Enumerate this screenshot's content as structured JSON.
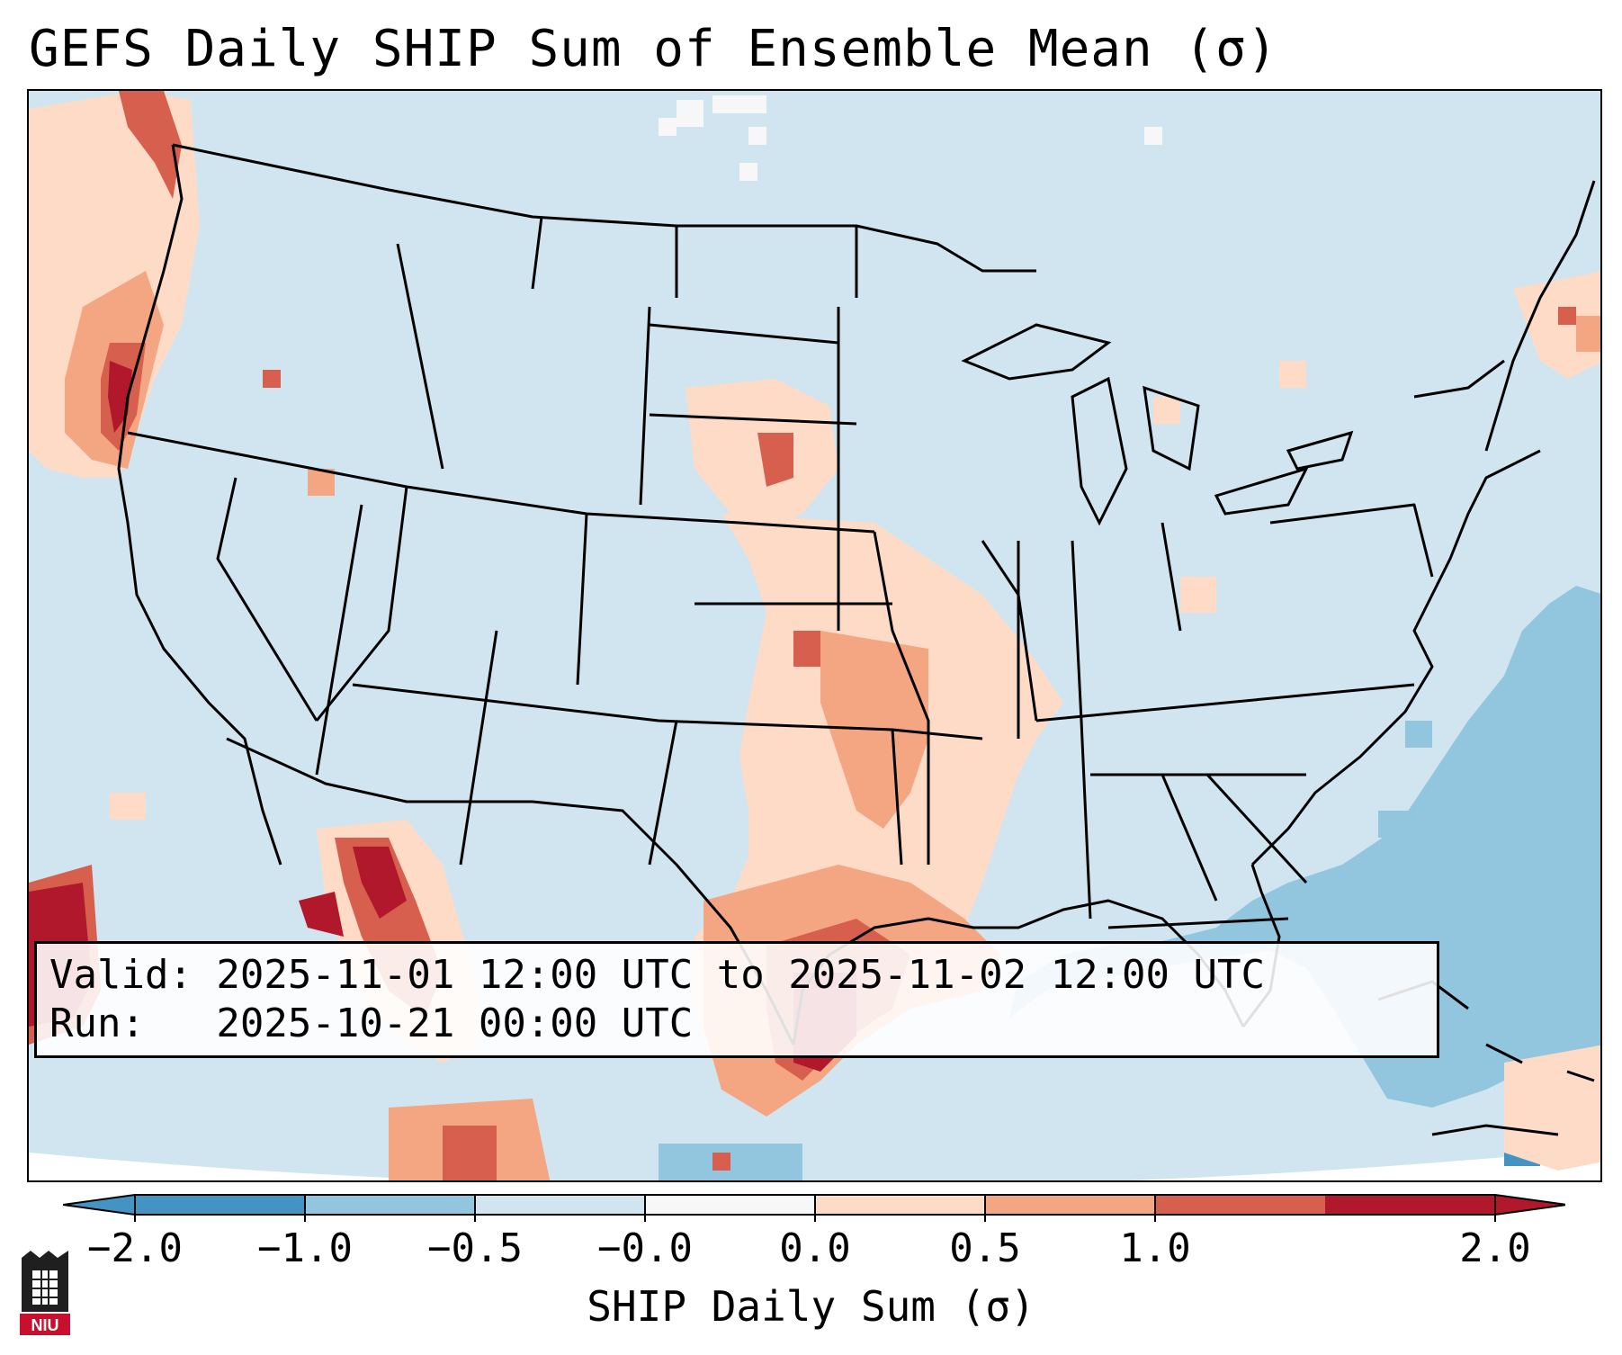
{
  "title": "GEFS Daily SHIP Sum of Ensemble Mean (σ)",
  "info": {
    "valid_line": "Valid: 2025-11-01 12:00 UTC to 2025-11-02 12:00 UTC",
    "run_line": "Run:   2025-10-21 00:00 UTC"
  },
  "colorbar": {
    "label": "SHIP Daily Sum (σ)",
    "ticks": [
      "−2.0",
      "−1.0",
      "−0.5",
      "−0.0",
      "0.0",
      "0.5",
      "1.0",
      "2.0"
    ],
    "colors": [
      "#4393c3",
      "#92c5de",
      "#d1e5f0",
      "#f7f7f7",
      "#fddbc7",
      "#f4a582",
      "#d6604d",
      "#b2182b"
    ],
    "extend": "both"
  },
  "logo": {
    "text": "NIU",
    "icon": "niu-tower-logo"
  },
  "map": {
    "projection": "conic",
    "region": "CONUS",
    "background_color": "#d1e5f0",
    "ocean_color": "#92c5de",
    "ocean_dark_color": "#4393c3",
    "positive_colors": [
      "#fddbc7",
      "#f4a582",
      "#d6604d",
      "#b2182b"
    ]
  }
}
